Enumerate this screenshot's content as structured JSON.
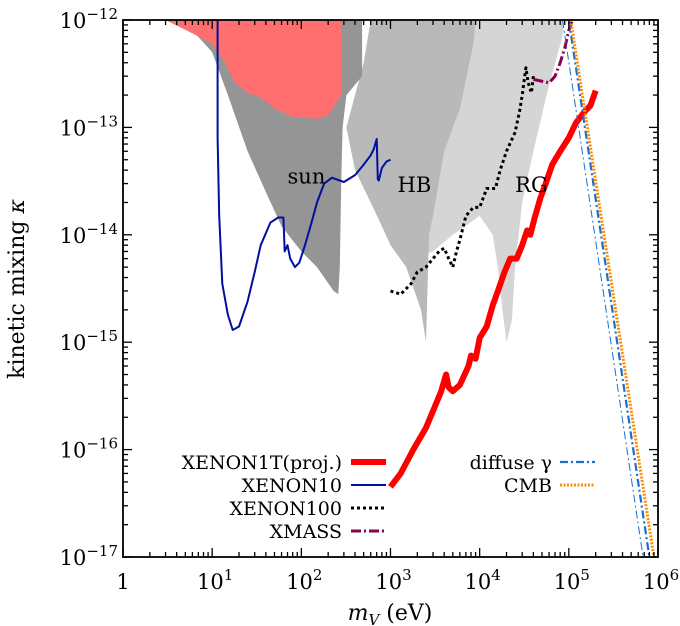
{
  "chart_data": {
    "type": "line",
    "xlabel_prefix": "m",
    "xlabel_sub": "V",
    "xlabel_suffix": " (eV)",
    "ylabel": "kinetic mixing κ",
    "x_scale": "log",
    "y_scale": "log",
    "xlim": [
      1,
      1000000
    ],
    "ylim": [
      1e-17,
      1e-12
    ],
    "grid": false,
    "x_ticks": [
      {
        "value": 1,
        "base": "1",
        "exp": ""
      },
      {
        "value": 10,
        "base": "10",
        "exp": "1"
      },
      {
        "value": 100,
        "base": "10",
        "exp": "2"
      },
      {
        "value": 1000,
        "base": "10",
        "exp": "3"
      },
      {
        "value": 10000,
        "base": "10",
        "exp": "4"
      },
      {
        "value": 100000,
        "base": "10",
        "exp": "5"
      },
      {
        "value": 1000000,
        "base": "10",
        "exp": "6"
      }
    ],
    "y_ticks": [
      {
        "value": 1e-17,
        "base": "10",
        "exp": "−17"
      },
      {
        "value": 1e-16,
        "base": "10",
        "exp": "−16"
      },
      {
        "value": 1e-15,
        "base": "10",
        "exp": "−15"
      },
      {
        "value": 1e-14,
        "base": "10",
        "exp": "−14"
      },
      {
        "value": 1e-13,
        "base": "10",
        "exp": "−13"
      },
      {
        "value": 1e-12,
        "base": "10",
        "exp": "−12"
      }
    ],
    "regions": [
      {
        "label": "RG",
        "color": "#d5d5d5",
        "label_pos": [
          25000,
          2.5e-14
        ],
        "points": [
          [
            1800,
            1e-12
          ],
          [
            90000,
            1e-12
          ],
          [
            85000,
            7e-13
          ],
          [
            60000,
            2.5e-13
          ],
          [
            40000,
            6e-14
          ],
          [
            30000,
            2e-14
          ],
          [
            25000,
            5e-15
          ],
          [
            23000,
            1.6e-15
          ],
          [
            20000,
            1e-15
          ],
          [
            18000,
            2e-15
          ],
          [
            16000,
            5e-15
          ],
          [
            14000,
            1e-14
          ],
          [
            10000,
            1.5e-14
          ],
          [
            5000,
            1e-14
          ],
          [
            3000,
            7e-15
          ],
          [
            1800,
            6e-15
          ]
        ]
      },
      {
        "label": "HB",
        "color": "#b9b9b9",
        "label_pos": [
          1200,
          2.5e-14
        ],
        "points": [
          [
            600,
            1e-12
          ],
          [
            9000,
            1e-12
          ],
          [
            8500,
            6e-13
          ],
          [
            6000,
            1.5e-13
          ],
          [
            4000,
            6e-14
          ],
          [
            3000,
            1.5e-14
          ],
          [
            2700,
            1e-14
          ],
          [
            2500,
            1e-15
          ],
          [
            2200,
            2e-15
          ],
          [
            1500,
            5e-15
          ],
          [
            1000,
            8e-15
          ],
          [
            800,
            1.2e-14
          ],
          [
            600,
            2e-14
          ],
          [
            400,
            4e-14
          ],
          [
            320,
            1e-13
          ],
          [
            400,
            2e-13
          ],
          [
            500,
            4e-13
          ],
          [
            600,
            1e-12
          ]
        ]
      },
      {
        "label": "sun",
        "color": "#959595",
        "label_pos": [
          70,
          3e-14
        ],
        "points": [
          [
            3,
            1e-12
          ],
          [
            480,
            1e-12
          ],
          [
            480,
            3e-13
          ],
          [
            320,
            2e-13
          ],
          [
            290,
            1e-13
          ],
          [
            280,
            3e-14
          ],
          [
            270,
            5e-15
          ],
          [
            260,
            2.8e-15
          ],
          [
            230,
            3e-15
          ],
          [
            150,
            5e-15
          ],
          [
            100,
            7e-15
          ],
          [
            60,
            1.2e-14
          ],
          [
            40,
            2.5e-14
          ],
          [
            25,
            6e-14
          ],
          [
            15,
            2e-13
          ],
          [
            10,
            5e-13
          ],
          [
            6,
            8e-13
          ],
          [
            3,
            1e-12
          ]
        ]
      },
      {
        "label": "",
        "color": "#ff6f6f",
        "label_pos": null,
        "points": [
          [
            3,
            1e-12
          ],
          [
            280,
            1e-12
          ],
          [
            280,
            2e-13
          ],
          [
            200,
            1.3e-13
          ],
          [
            150,
            1.2e-13
          ],
          [
            80,
            1.25e-13
          ],
          [
            50,
            1.5e-13
          ],
          [
            35,
            1.9e-13
          ],
          [
            25,
            2.1e-13
          ],
          [
            18,
            2.6e-13
          ],
          [
            14,
            4e-13
          ],
          [
            10,
            6e-13
          ],
          [
            6,
            7.5e-13
          ],
          [
            3,
            1e-12
          ]
        ]
      }
    ],
    "series": [
      {
        "name": "XENON1T(proj.)",
        "color": "#ff0000",
        "dash": "",
        "width": 6,
        "points": [
          [
            1000,
            4.5e-17
          ],
          [
            1300,
            6e-17
          ],
          [
            1800,
            1e-16
          ],
          [
            2500,
            1.6e-16
          ],
          [
            3200,
            2.6e-16
          ],
          [
            3700,
            3.5e-16
          ],
          [
            4200,
            5e-16
          ],
          [
            4500,
            3.8e-16
          ],
          [
            5000,
            3.5e-16
          ],
          [
            6000,
            4e-16
          ],
          [
            7500,
            6e-16
          ],
          [
            8000,
            7.5e-16
          ],
          [
            9000,
            7e-16
          ],
          [
            10000,
            1.1e-15
          ],
          [
            12000,
            1.4e-15
          ],
          [
            14000,
            2.2e-15
          ],
          [
            16000,
            3e-15
          ],
          [
            19000,
            4.5e-15
          ],
          [
            22000,
            6e-15
          ],
          [
            26000,
            6e-15
          ],
          [
            30000,
            8e-15
          ],
          [
            34000,
            1.1e-14
          ],
          [
            37000,
            1e-14
          ],
          [
            41000,
            1.4e-14
          ],
          [
            48000,
            2.2e-14
          ],
          [
            55000,
            3e-14
          ],
          [
            65000,
            4.5e-14
          ],
          [
            80000,
            6e-14
          ],
          [
            100000,
            8e-14
          ],
          [
            120000,
            1.1e-13
          ],
          [
            150000,
            1.4e-13
          ],
          [
            175000,
            1.6e-13
          ],
          [
            200000,
            2.2e-13
          ]
        ]
      },
      {
        "name": "XENON10",
        "color": "#00109c",
        "dash": "",
        "width": 2,
        "points": [
          [
            11.5,
            1e-12
          ],
          [
            11.5,
            8e-14
          ],
          [
            12,
            1.5e-14
          ],
          [
            13,
            3.5e-15
          ],
          [
            15,
            1.8e-15
          ],
          [
            17,
            1.3e-15
          ],
          [
            20,
            1.4e-15
          ],
          [
            25,
            2.4e-15
          ],
          [
            30,
            4.5e-15
          ],
          [
            35,
            8e-15
          ],
          [
            45,
            1.3e-14
          ],
          [
            55,
            1.45e-14
          ],
          [
            63,
            1.45e-14
          ],
          [
            65,
            7e-15
          ],
          [
            70,
            8e-15
          ],
          [
            75,
            6e-15
          ],
          [
            85,
            5e-15
          ],
          [
            95,
            5.5e-15
          ],
          [
            110,
            8e-15
          ],
          [
            130,
            1.3e-14
          ],
          [
            150,
            2e-14
          ],
          [
            180,
            3e-14
          ],
          [
            220,
            3.4e-14
          ],
          [
            300,
            3.1e-14
          ],
          [
            400,
            3.6e-14
          ],
          [
            500,
            4.5e-14
          ],
          [
            600,
            5.5e-14
          ],
          [
            650,
            6.3e-14
          ],
          [
            700,
            7.8e-14
          ],
          [
            720,
            3.3e-14
          ],
          [
            740,
            3.2e-14
          ],
          [
            800,
            4.2e-14
          ],
          [
            900,
            4.8e-14
          ],
          [
            1000,
            5e-14
          ]
        ]
      },
      {
        "name": "XENON100",
        "color": "#000000",
        "dash": "3 3",
        "width": 3,
        "points": [
          [
            1000,
            3e-15
          ],
          [
            1300,
            2.8e-15
          ],
          [
            1700,
            3.5e-15
          ],
          [
            2000,
            4.5e-15
          ],
          [
            2500,
            5e-15
          ],
          [
            3000,
            6e-15
          ],
          [
            3500,
            7e-15
          ],
          [
            4000,
            7.5e-15
          ],
          [
            4500,
            6e-15
          ],
          [
            5000,
            5e-15
          ],
          [
            5500,
            7e-15
          ],
          [
            6000,
            9e-15
          ],
          [
            7000,
            1.5e-14
          ],
          [
            8500,
            1.8e-14
          ],
          [
            10000,
            1.8e-14
          ],
          [
            12000,
            2.7e-14
          ],
          [
            15000,
            2.7e-14
          ],
          [
            17000,
            4e-14
          ],
          [
            20000,
            6e-14
          ],
          [
            25000,
            9e-14
          ],
          [
            28000,
            1.4e-13
          ],
          [
            30000,
            2e-13
          ],
          [
            33000,
            3.6e-13
          ],
          [
            35000,
            2.6e-13
          ],
          [
            38000,
            2.1e-13
          ],
          [
            40000,
            3e-13
          ]
        ]
      },
      {
        "name": "XMASS",
        "color": "#8b0051",
        "dash": "10 3 2 3",
        "width": 3,
        "points": [
          [
            40000,
            2.8e-13
          ],
          [
            60000,
            2.6e-13
          ],
          [
            70000,
            3e-13
          ],
          [
            80000,
            4e-13
          ],
          [
            90000,
            5.5e-13
          ],
          [
            100000,
            8e-13
          ],
          [
            110000,
            1e-12
          ]
        ]
      },
      {
        "name": "diffuse γ",
        "color": "#1a6fd0",
        "dash": "8 3 2 3",
        "width": 2.2,
        "points": [
          [
            100000,
            1e-12
          ],
          [
            800000,
            1e-17
          ]
        ]
      },
      {
        "name": "diffuse γ (thin)",
        "color": "#1a6fd0",
        "dash": "8 3 2 3",
        "width": 1,
        "points": [
          [
            85000,
            1e-12
          ],
          [
            680000,
            1e-17
          ]
        ]
      },
      {
        "name": "CMB",
        "color": "#ff8c00",
        "dash": "2 1.5",
        "width": 3,
        "points": [
          [
            105000,
            1e-12
          ],
          [
            900000,
            1e-17
          ]
        ]
      }
    ],
    "legend_left": [
      {
        "name": "XENON1T(proj.)",
        "series": 0
      },
      {
        "name": "XENON10",
        "series": 1
      },
      {
        "name": "XENON100",
        "series": 2
      },
      {
        "name": "XMASS",
        "series": 3
      }
    ],
    "legend_right": [
      {
        "name": "diffuse γ",
        "series": 4
      },
      {
        "name": "CMB",
        "series": 6
      }
    ]
  }
}
